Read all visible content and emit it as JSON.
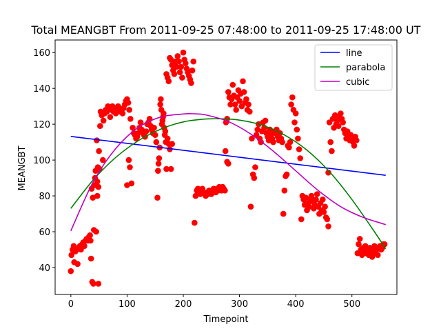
{
  "chart_data": {
    "type": "scatter",
    "title": "Total MEANGBT From 2011-09-25 07:48:00 to 2011-09-25 17:48:00 UT",
    "xlabel": "Timepoint",
    "ylabel": "MEANGBT",
    "xlim": [
      -28,
      580
    ],
    "ylim": [
      25,
      167
    ],
    "x_ticks": [
      0,
      100,
      200,
      300,
      400,
      500
    ],
    "y_ticks": [
      40,
      60,
      80,
      100,
      120,
      140,
      160
    ],
    "legend_position": "top-right",
    "grid": false,
    "colors": {
      "points": "#ff0000",
      "line": "#0000ff",
      "parabola": "#008000",
      "cubic": "#bf00bf"
    },
    "points": [
      [
        0,
        38
      ],
      [
        1,
        47
      ],
      [
        3,
        50
      ],
      [
        5,
        52
      ],
      [
        6,
        43
      ],
      [
        8,
        49
      ],
      [
        10,
        50
      ],
      [
        12,
        42
      ],
      [
        14,
        51
      ],
      [
        16,
        52
      ],
      [
        18,
        50
      ],
      [
        20,
        53
      ],
      [
        22,
        54
      ],
      [
        24,
        52
      ],
      [
        26,
        55
      ],
      [
        28,
        56
      ],
      [
        30,
        55
      ],
      [
        32,
        57
      ],
      [
        34,
        58
      ],
      [
        35,
        55
      ],
      [
        36,
        45
      ],
      [
        38,
        32
      ],
      [
        40,
        31
      ],
      [
        42,
        86
      ],
      [
        44,
        94
      ],
      [
        46,
        111
      ],
      [
        47,
        88
      ],
      [
        48,
        96
      ],
      [
        50,
        105
      ],
      [
        51,
        95
      ],
      [
        37,
        84
      ],
      [
        39,
        79
      ],
      [
        41,
        61
      ],
      [
        43,
        90
      ],
      [
        45,
        60
      ],
      [
        47,
        80
      ],
      [
        49,
        85
      ],
      [
        49,
        31
      ],
      [
        52,
        119
      ],
      [
        53,
        127
      ],
      [
        55,
        125
      ],
      [
        57,
        100
      ],
      [
        58,
        122
      ],
      [
        60,
        126
      ],
      [
        62,
        128
      ],
      [
        64,
        127
      ],
      [
        66,
        130
      ],
      [
        68,
        129
      ],
      [
        70,
        124
      ],
      [
        72,
        128
      ],
      [
        74,
        130
      ],
      [
        76,
        127
      ],
      [
        78,
        129
      ],
      [
        80,
        126
      ],
      [
        82,
        128
      ],
      [
        84,
        130
      ],
      [
        86,
        129
      ],
      [
        88,
        127
      ],
      [
        90,
        128
      ],
      [
        92,
        126
      ],
      [
        94,
        129
      ],
      [
        96,
        131
      ],
      [
        98,
        133
      ],
      [
        100,
        134
      ],
      [
        102,
        132
      ],
      [
        104,
        128
      ],
      [
        106,
        123
      ],
      [
        100,
        86
      ],
      [
        103,
        100
      ],
      [
        105,
        96
      ],
      [
        108,
        87
      ],
      [
        110,
        118
      ],
      [
        112,
        115
      ],
      [
        114,
        114
      ],
      [
        116,
        112
      ],
      [
        118,
        113
      ],
      [
        120,
        115
      ],
      [
        122,
        118
      ],
      [
        124,
        121
      ],
      [
        126,
        117
      ],
      [
        128,
        116
      ],
      [
        130,
        114
      ],
      [
        132,
        113
      ],
      [
        134,
        116
      ],
      [
        136,
        120
      ],
      [
        138,
        121
      ],
      [
        140,
        123
      ],
      [
        142,
        119
      ],
      [
        144,
        117
      ],
      [
        146,
        115
      ],
      [
        148,
        118
      ],
      [
        150,
        114
      ],
      [
        152,
        110
      ],
      [
        154,
        79
      ],
      [
        155,
        94
      ],
      [
        156,
        98
      ],
      [
        157,
        101
      ],
      [
        158,
        107
      ],
      [
        159,
        131
      ],
      [
        160,
        134
      ],
      [
        161,
        128
      ],
      [
        162,
        120
      ],
      [
        163,
        122
      ],
      [
        164,
        124
      ],
      [
        165,
        126
      ],
      [
        166,
        118
      ],
      [
        167,
        114
      ],
      [
        168,
        116
      ],
      [
        169,
        110
      ],
      [
        170,
        95
      ],
      [
        172,
        112
      ],
      [
        174,
        109
      ],
      [
        176,
        106
      ],
      [
        178,
        95
      ],
      [
        180,
        109
      ],
      [
        170,
        148
      ],
      [
        172,
        146
      ],
      [
        174,
        144
      ],
      [
        176,
        157
      ],
      [
        178,
        156
      ],
      [
        180,
        153
      ],
      [
        182,
        150
      ],
      [
        184,
        148
      ],
      [
        186,
        155
      ],
      [
        188,
        152
      ],
      [
        190,
        158
      ],
      [
        192,
        155
      ],
      [
        194,
        149
      ],
      [
        196,
        152
      ],
      [
        198,
        146
      ],
      [
        200,
        160
      ],
      [
        202,
        156
      ],
      [
        204,
        154
      ],
      [
        206,
        151
      ],
      [
        208,
        149
      ],
      [
        210,
        147
      ],
      [
        212,
        145
      ],
      [
        214,
        143
      ],
      [
        216,
        150
      ],
      [
        218,
        155
      ],
      [
        220,
        65
      ],
      [
        222,
        80
      ],
      [
        224,
        83
      ],
      [
        226,
        84
      ],
      [
        228,
        82
      ],
      [
        230,
        81
      ],
      [
        232,
        83
      ],
      [
        234,
        84
      ],
      [
        236,
        82
      ],
      [
        238,
        81
      ],
      [
        240,
        80
      ],
      [
        242,
        82
      ],
      [
        244,
        81
      ],
      [
        246,
        83
      ],
      [
        248,
        82
      ],
      [
        250,
        81
      ],
      [
        252,
        82
      ],
      [
        254,
        84
      ],
      [
        256,
        83
      ],
      [
        258,
        82
      ],
      [
        260,
        84
      ],
      [
        262,
        83
      ],
      [
        264,
        85
      ],
      [
        266,
        84
      ],
      [
        268,
        83
      ],
      [
        270,
        85
      ],
      [
        272,
        84
      ],
      [
        274,
        83
      ],
      [
        275,
        105
      ],
      [
        278,
        99
      ],
      [
        280,
        98
      ],
      [
        276,
        121
      ],
      [
        278,
        123
      ],
      [
        280,
        138
      ],
      [
        282,
        135
      ],
      [
        284,
        131
      ],
      [
        286,
        134
      ],
      [
        288,
        142
      ],
      [
        290,
        136
      ],
      [
        292,
        131
      ],
      [
        294,
        128
      ],
      [
        296,
        135
      ],
      [
        298,
        139
      ],
      [
        300,
        133
      ],
      [
        302,
        137
      ],
      [
        304,
        130
      ],
      [
        306,
        144
      ],
      [
        308,
        138
      ],
      [
        310,
        132
      ],
      [
        312,
        134
      ],
      [
        314,
        128
      ],
      [
        316,
        131
      ],
      [
        318,
        127
      ],
      [
        320,
        74
      ],
      [
        322,
        112
      ],
      [
        324,
        92
      ],
      [
        326,
        90
      ],
      [
        328,
        96
      ],
      [
        330,
        114
      ],
      [
        332,
        117
      ],
      [
        334,
        120
      ],
      [
        336,
        112
      ],
      [
        338,
        110
      ],
      [
        340,
        116
      ],
      [
        342,
        121
      ],
      [
        344,
        118
      ],
      [
        346,
        122
      ],
      [
        348,
        115
      ],
      [
        350,
        113
      ],
      [
        352,
        111
      ],
      [
        354,
        117
      ],
      [
        356,
        114
      ],
      [
        358,
        112
      ],
      [
        360,
        110
      ],
      [
        362,
        116
      ],
      [
        364,
        115
      ],
      [
        366,
        117
      ],
      [
        368,
        113
      ],
      [
        370,
        111
      ],
      [
        372,
        115
      ],
      [
        374,
        112
      ],
      [
        376,
        110
      ],
      [
        378,
        70
      ],
      [
        380,
        83
      ],
      [
        382,
        91
      ],
      [
        384,
        92
      ],
      [
        386,
        108
      ],
      [
        388,
        107
      ],
      [
        390,
        110
      ],
      [
        392,
        131
      ],
      [
        394,
        135
      ],
      [
        396,
        128
      ],
      [
        398,
        121
      ],
      [
        400,
        126
      ],
      [
        402,
        117
      ],
      [
        404,
        112
      ],
      [
        406,
        106
      ],
      [
        408,
        101
      ],
      [
        410,
        67
      ],
      [
        412,
        80
      ],
      [
        414,
        78
      ],
      [
        416,
        75
      ],
      [
        418,
        79
      ],
      [
        420,
        72
      ],
      [
        422,
        76
      ],
      [
        424,
        74
      ],
      [
        426,
        78
      ],
      [
        428,
        80
      ],
      [
        430,
        77
      ],
      [
        432,
        73
      ],
      [
        434,
        75
      ],
      [
        436,
        78
      ],
      [
        438,
        81
      ],
      [
        440,
        74
      ],
      [
        442,
        70
      ],
      [
        444,
        76
      ],
      [
        446,
        72
      ],
      [
        448,
        78
      ],
      [
        450,
        71
      ],
      [
        452,
        74
      ],
      [
        454,
        68
      ],
      [
        456,
        67
      ],
      [
        458,
        63
      ],
      [
        458,
        93
      ],
      [
        460,
        121
      ],
      [
        462,
        110
      ],
      [
        464,
        105
      ],
      [
        466,
        123
      ],
      [
        468,
        118
      ],
      [
        470,
        125
      ],
      [
        472,
        120
      ],
      [
        474,
        122
      ],
      [
        476,
        119
      ],
      [
        478,
        124
      ],
      [
        480,
        126
      ],
      [
        482,
        123
      ],
      [
        484,
        121
      ],
      [
        486,
        117
      ],
      [
        488,
        115
      ],
      [
        490,
        112
      ],
      [
        492,
        116
      ],
      [
        494,
        113
      ],
      [
        496,
        111
      ],
      [
        498,
        114
      ],
      [
        500,
        112
      ],
      [
        502,
        110
      ],
      [
        504,
        108
      ],
      [
        506,
        113
      ],
      [
        508,
        111
      ],
      [
        510,
        48
      ],
      [
        512,
        53
      ],
      [
        514,
        56
      ],
      [
        516,
        50
      ],
      [
        518,
        47
      ],
      [
        520,
        51
      ],
      [
        522,
        49
      ],
      [
        524,
        52
      ],
      [
        526,
        48
      ],
      [
        528,
        50
      ],
      [
        530,
        47
      ],
      [
        532,
        51
      ],
      [
        534,
        49
      ],
      [
        536,
        46
      ],
      [
        538,
        50
      ],
      [
        540,
        52
      ],
      [
        542,
        48
      ],
      [
        544,
        50
      ],
      [
        546,
        47
      ],
      [
        548,
        51
      ],
      [
        550,
        52
      ],
      [
        552,
        50
      ],
      [
        554,
        51
      ],
      [
        556,
        53
      ],
      [
        558,
        53
      ]
    ],
    "series": [
      {
        "name": "line",
        "x": [
          0,
          560
        ],
        "y": [
          113.2,
          91.5
        ]
      },
      {
        "name": "parabola",
        "x": [
          0,
          40,
          80,
          120,
          160,
          200,
          240,
          270,
          300,
          340,
          380,
          420,
          460,
          500,
          540,
          560
        ],
        "y": [
          73,
          89,
          101.5,
          110.8,
          117.3,
          121.3,
          122.9,
          123,
          122.3,
          119.5,
          114,
          105.5,
          93.5,
          78,
          60,
          50.5
        ]
      },
      {
        "name": "cubic",
        "x": [
          0,
          40,
          80,
          120,
          160,
          200,
          220,
          240,
          280,
          320,
          360,
          400,
          440,
          480,
          520,
          560
        ],
        "y": [
          60.5,
          88,
          106.5,
          118.2,
          124,
          125.7,
          125.8,
          125.2,
          121.5,
          114.5,
          105,
          94,
          83,
          74,
          68,
          64
        ]
      }
    ]
  }
}
